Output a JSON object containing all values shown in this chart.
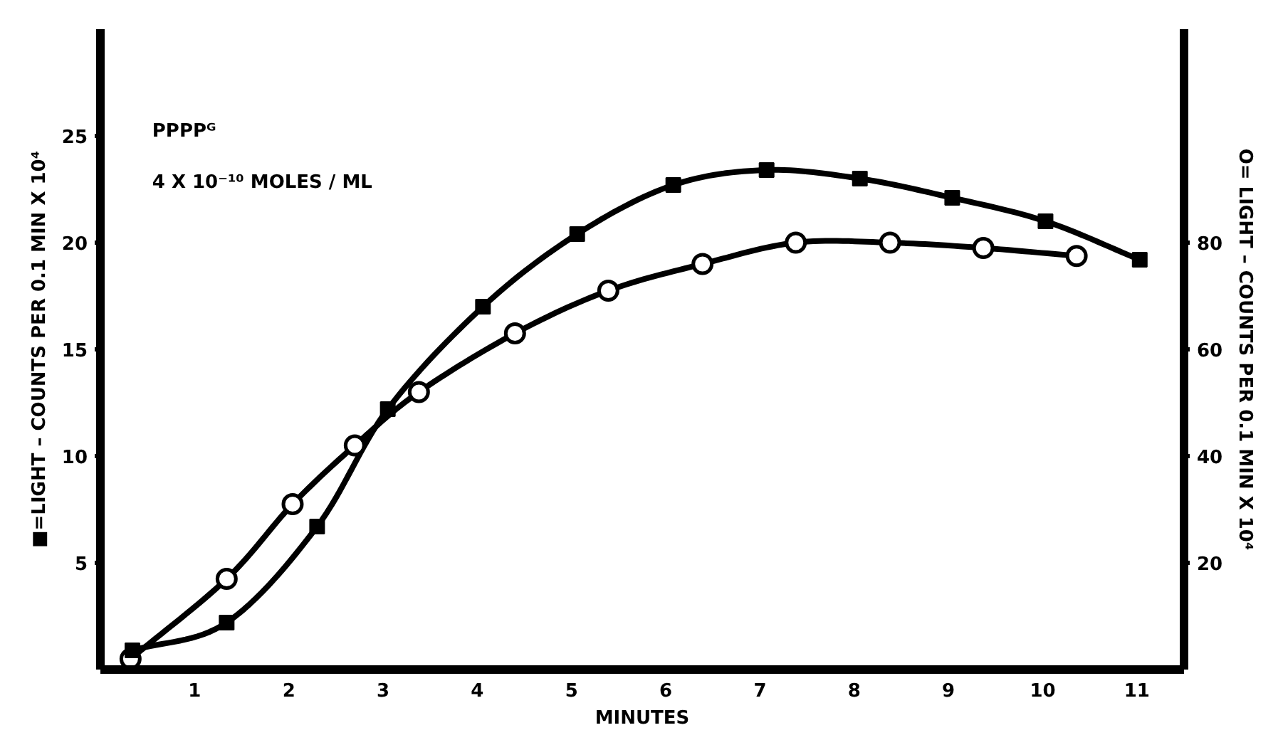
{
  "chart_data": {
    "type": "line",
    "xlabel": "MINUTES",
    "ylabel": "■=LIGHT – COUNTS PER 0.1 MIN X 10⁴",
    "y2label": "O= LIGHT – COUNTS PER 0.1 MIN X 10⁴",
    "annotations": [
      "PPPPᴳ",
      "4 X 10⁻¹⁰ MOLES / ML"
    ],
    "xlim": [
      0,
      11.5
    ],
    "xticks": [
      1,
      2,
      3,
      4,
      5,
      6,
      7,
      8,
      9,
      10,
      11
    ],
    "ylim": [
      0,
      30
    ],
    "yticks": [
      5,
      10,
      15,
      20,
      25
    ],
    "y2lim": [
      0,
      120
    ],
    "y2ticks": [
      20,
      40,
      60,
      80
    ],
    "grid": false,
    "line_style": "solid",
    "series": [
      {
        "color": "#000000",
        "marker": "square",
        "x": [
          0.34,
          1.34,
          2.3,
          3.05,
          4.06,
          5.06,
          6.08,
          7.07,
          8.06,
          9.04,
          10.03,
          11.03
        ],
        "values": [
          0.9,
          2.2,
          6.7,
          12.2,
          17.0,
          20.4,
          22.7,
          23.4,
          23.0,
          22.1,
          21.0,
          19.2
        ]
      },
      {
        "color": "#000000",
        "marker": "circle",
        "axis": "y2",
        "x": [
          0.32,
          1.34,
          2.04,
          2.7,
          3.38,
          4.4,
          5.39,
          6.39,
          7.38,
          8.38,
          9.37,
          10.36
        ],
        "values": [
          2,
          17,
          31,
          42,
          52,
          63,
          71,
          76,
          80,
          80,
          79,
          77.5
        ]
      }
    ]
  }
}
